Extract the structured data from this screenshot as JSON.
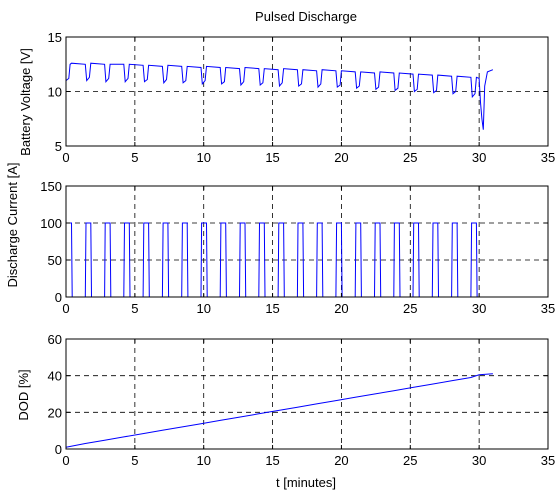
{
  "figure_title": "Pulsed Discharge",
  "colors": {
    "line": "#0000ff",
    "axes": "#000000",
    "grid": "#000000",
    "background": "#ffffff"
  },
  "chart_data": [
    {
      "type": "line",
      "title": "Pulsed Discharge",
      "xlabel": "",
      "ylabel": "Battery Voltage [V]",
      "xlim": [
        0,
        35
      ],
      "ylim": [
        5,
        15
      ],
      "xticks": [
        "0",
        "5",
        "10",
        "15",
        "20",
        "25",
        "30",
        "35"
      ],
      "yticks": [
        "5",
        "10",
        "15"
      ],
      "grid": true,
      "series": [
        {
          "x": [
            0,
            0.2,
            0.3,
            0.4,
            1.4,
            1.5,
            1.7,
            1.8,
            2.8,
            2.9,
            3.1,
            3.2,
            4.2,
            4.3,
            4.5,
            4.6,
            5.6,
            5.7,
            5.9,
            6.0,
            7.0,
            7.1,
            7.3,
            7.4,
            8.4,
            8.5,
            8.7,
            8.8,
            9.8,
            9.9,
            10.1,
            10.2,
            11.2,
            11.3,
            11.5,
            11.6,
            12.6,
            12.7,
            12.9,
            13.0,
            14.0,
            14.1,
            14.3,
            14.4,
            15.4,
            15.5,
            15.7,
            15.8,
            16.8,
            16.9,
            17.1,
            17.2,
            18.2,
            18.3,
            18.5,
            18.6,
            19.6,
            19.7,
            19.9,
            20.0,
            21.0,
            21.1,
            21.3,
            21.4,
            22.4,
            22.5,
            22.7,
            22.8,
            23.8,
            23.9,
            24.1,
            24.2,
            25.2,
            25.3,
            25.5,
            25.6,
            26.6,
            26.7,
            26.9,
            27.0,
            28.0,
            28.1,
            28.3,
            28.4,
            29.4,
            29.5,
            29.7,
            29.8,
            30.0,
            30.1,
            30.2,
            30.3,
            30.4,
            30.6,
            31.0
          ],
          "y": [
            11.0,
            11.2,
            12.5,
            12.6,
            12.5,
            11.0,
            11.3,
            12.6,
            12.5,
            10.9,
            11.2,
            12.5,
            12.5,
            10.9,
            11.2,
            12.5,
            12.4,
            10.9,
            11.1,
            12.4,
            12.3,
            10.8,
            11.1,
            12.4,
            12.3,
            10.8,
            11.0,
            12.3,
            12.2,
            10.7,
            11.0,
            12.3,
            12.2,
            10.7,
            10.9,
            12.2,
            12.1,
            10.6,
            10.9,
            12.2,
            12.1,
            10.6,
            10.8,
            12.1,
            12.0,
            10.5,
            10.8,
            12.1,
            12.0,
            10.5,
            10.7,
            12.0,
            11.9,
            10.4,
            10.7,
            12.0,
            11.9,
            10.4,
            10.6,
            11.9,
            11.8,
            10.3,
            10.5,
            11.8,
            11.7,
            10.2,
            10.4,
            11.8,
            11.7,
            10.1,
            10.3,
            11.7,
            11.6,
            10.0,
            10.2,
            11.6,
            11.5,
            9.9,
            10.1,
            11.5,
            11.4,
            9.8,
            10.0,
            11.4,
            11.3,
            9.5,
            9.8,
            11.3,
            11.2,
            9.0,
            7.5,
            6.5,
            10.5,
            11.8,
            12.0
          ]
        }
      ]
    },
    {
      "type": "line",
      "xlabel": "",
      "ylabel": "Discharge Current  [A]",
      "xlim": [
        0,
        35
      ],
      "ylim": [
        0,
        150
      ],
      "xticks": [
        "0",
        "5",
        "10",
        "15",
        "20",
        "25",
        "30",
        "35"
      ],
      "yticks": [
        "0",
        "50",
        "100",
        "150"
      ],
      "grid": true,
      "series": [
        {
          "pulse_period_min": 1.4,
          "pulse_on_min": 0.45,
          "pulse_count": 22,
          "on_value": 100,
          "off_value": 0,
          "end_min": 30.0
        }
      ]
    },
    {
      "type": "line",
      "xlabel": "t [minutes]",
      "ylabel": "DOD [%]",
      "xlim": [
        0,
        35
      ],
      "ylim": [
        0,
        60
      ],
      "xticks": [
        "0",
        "5",
        "10",
        "15",
        "20",
        "25",
        "30",
        "35"
      ],
      "yticks": [
        "0",
        "20",
        "40",
        "60"
      ],
      "grid": true,
      "series": [
        {
          "x": [
            0,
            1.4,
            2.8,
            4.2,
            5.6,
            7.0,
            8.4,
            9.8,
            11.2,
            12.6,
            14.0,
            15.4,
            16.8,
            18.2,
            19.6,
            21.0,
            22.4,
            23.8,
            25.2,
            26.6,
            28.0,
            29.4,
            30.0,
            31.0
          ],
          "y": [
            1.0,
            3.0,
            4.8,
            6.6,
            8.4,
            10.2,
            12.0,
            13.8,
            15.6,
            17.4,
            19.2,
            21.0,
            22.8,
            24.6,
            26.4,
            28.2,
            30.0,
            31.8,
            33.6,
            35.4,
            37.2,
            39.0,
            40.5,
            41.0
          ]
        }
      ]
    }
  ]
}
